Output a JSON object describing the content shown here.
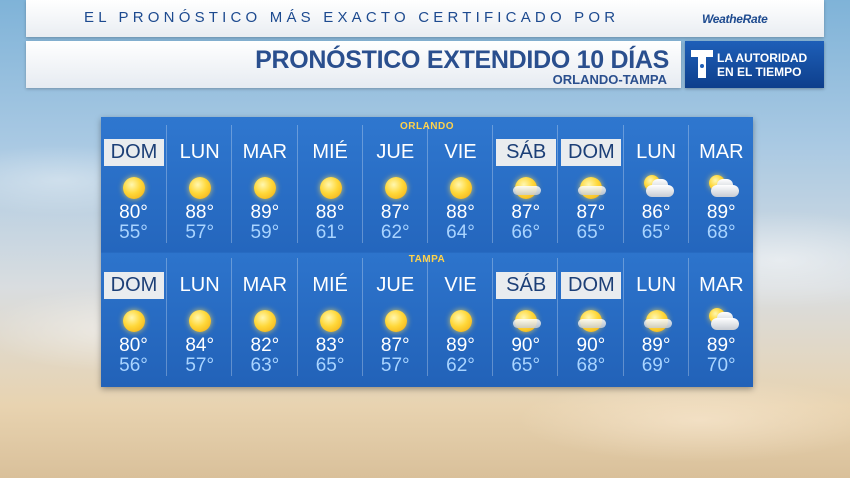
{
  "header": {
    "tagline": "EL PRONÓSTICO MÁS EXACTO CERTIFICADO POR",
    "brand": "WeatheRate"
  },
  "titlebar": {
    "title": "PRONÓSTICO  EXTENDIDO 10 DÍAS",
    "subtitle": "ORLANDO-TAMPA"
  },
  "logo": {
    "line1": "LA AUTORIDAD",
    "line2": "EN EL TIEMPO"
  },
  "cities": [
    {
      "name": "ORLANDO",
      "days": [
        {
          "day": "DOM",
          "highlight": true,
          "icon": "sunny-icon",
          "high": "80°",
          "low": "55°"
        },
        {
          "day": "LUN",
          "highlight": false,
          "icon": "sunny-icon",
          "high": "88°",
          "low": "57°"
        },
        {
          "day": "MAR",
          "highlight": false,
          "icon": "sunny-icon",
          "high": "89°",
          "low": "59°"
        },
        {
          "day": "MIÉ",
          "highlight": false,
          "icon": "sunny-icon",
          "high": "88°",
          "low": "61°"
        },
        {
          "day": "JUE",
          "highlight": false,
          "icon": "sunny-icon",
          "high": "87°",
          "low": "62°"
        },
        {
          "day": "VIE",
          "highlight": false,
          "icon": "sunny-icon",
          "high": "88°",
          "low": "64°"
        },
        {
          "day": "SÁB",
          "highlight": true,
          "icon": "mostly-sunny-icon",
          "high": "87°",
          "low": "66°"
        },
        {
          "day": "DOM",
          "highlight": true,
          "icon": "mostly-sunny-icon",
          "high": "87°",
          "low": "65°"
        },
        {
          "day": "LUN",
          "highlight": false,
          "icon": "partly-cloudy-icon",
          "high": "86°",
          "low": "65°"
        },
        {
          "day": "MAR",
          "highlight": false,
          "icon": "partly-cloudy-icon",
          "high": "89°",
          "low": "68°"
        }
      ]
    },
    {
      "name": "TAMPA",
      "days": [
        {
          "day": "DOM",
          "highlight": true,
          "icon": "sunny-icon",
          "high": "80°",
          "low": "56°"
        },
        {
          "day": "LUN",
          "highlight": false,
          "icon": "sunny-icon",
          "high": "84°",
          "low": "57°"
        },
        {
          "day": "MAR",
          "highlight": false,
          "icon": "sunny-icon",
          "high": "82°",
          "low": "63°"
        },
        {
          "day": "MIÉ",
          "highlight": false,
          "icon": "sunny-icon",
          "high": "83°",
          "low": "65°"
        },
        {
          "day": "JUE",
          "highlight": false,
          "icon": "sunny-icon",
          "high": "87°",
          "low": "57°"
        },
        {
          "day": "VIE",
          "highlight": false,
          "icon": "sunny-icon",
          "high": "89°",
          "low": "62°"
        },
        {
          "day": "SÁB",
          "highlight": true,
          "icon": "mostly-sunny-icon",
          "high": "90°",
          "low": "65°"
        },
        {
          "day": "DOM",
          "highlight": true,
          "icon": "mostly-sunny-icon",
          "high": "90°",
          "low": "68°"
        },
        {
          "day": "LUN",
          "highlight": false,
          "icon": "mostly-sunny-icon",
          "high": "89°",
          "low": "69°"
        },
        {
          "day": "MAR",
          "highlight": false,
          "icon": "partly-cloudy-icon",
          "high": "89°",
          "low": "70°"
        }
      ]
    }
  ],
  "colors": {
    "panel": "#2466bd",
    "highlight_bg": "#e9ecef",
    "low_temp": "#a9d4ff",
    "city_label": "#ffd24a"
  }
}
